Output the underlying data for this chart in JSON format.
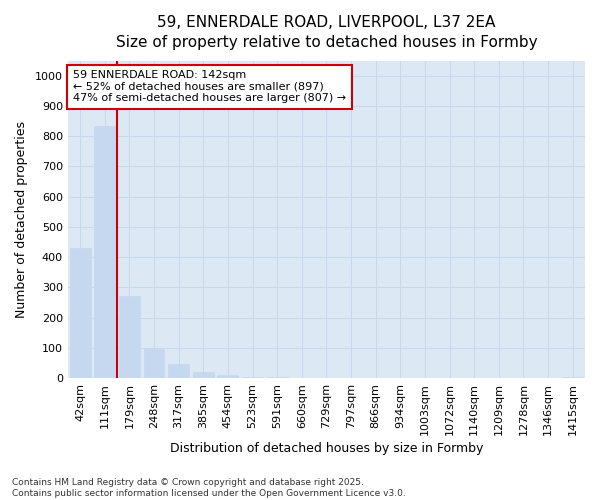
{
  "title_line1": "59, ENNERDALE ROAD, LIVERPOOL, L37 2EA",
  "title_line2": "Size of property relative to detached houses in Formby",
  "xlabel": "Distribution of detached houses by size in Formby",
  "ylabel": "Number of detached properties",
  "annotation_line1": "59 ENNERDALE ROAD: 142sqm",
  "annotation_line2": "← 52% of detached houses are smaller (897)",
  "annotation_line3": "47% of semi-detached houses are larger (807) →",
  "categories": [
    "42sqm",
    "111sqm",
    "179sqm",
    "248sqm",
    "317sqm",
    "385sqm",
    "454sqm",
    "523sqm",
    "591sqm",
    "660sqm",
    "729sqm",
    "797sqm",
    "866sqm",
    "934sqm",
    "1003sqm",
    "1072sqm",
    "1140sqm",
    "1209sqm",
    "1278sqm",
    "1346sqm",
    "1415sqm"
  ],
  "bar_values": [
    430,
    835,
    270,
    95,
    47,
    20,
    10,
    5,
    5,
    0,
    0,
    0,
    0,
    0,
    0,
    0,
    0,
    0,
    0,
    0,
    5
  ],
  "bar_color": "#c5d8f0",
  "red_line_color": "#cc0000",
  "red_line_x": 1.5,
  "annotation_box_edge_color": "#cc0000",
  "annotation_box_face_color": "white",
  "grid_color": "#c8d8ec",
  "plot_bg_color": "#dde8f5",
  "fig_bg_color": "#ffffff",
  "ylim": [
    0,
    1050
  ],
  "yticks": [
    0,
    100,
    200,
    300,
    400,
    500,
    600,
    700,
    800,
    900,
    1000
  ],
  "title_fontsize": 11,
  "subtitle_fontsize": 10,
  "axis_label_fontsize": 9,
  "tick_fontsize": 8,
  "annotation_fontsize": 8,
  "footer_text": "Contains HM Land Registry data © Crown copyright and database right 2025.\nContains public sector information licensed under the Open Government Licence v3.0."
}
